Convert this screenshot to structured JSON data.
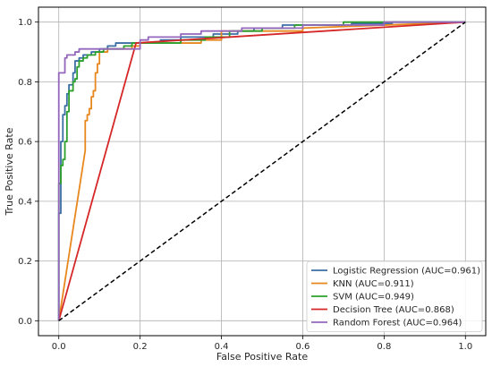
{
  "chart_data": {
    "type": "line",
    "title": "",
    "xlabel": "False Positive Rate",
    "ylabel": "True Positive Rate",
    "xlim": [
      -0.05,
      1.05
    ],
    "ylim": [
      -0.05,
      1.05
    ],
    "xticks": [
      "0.0",
      "0.2",
      "0.4",
      "0.6",
      "0.8",
      "1.0"
    ],
    "yticks": [
      "0.0",
      "0.2",
      "0.4",
      "0.6",
      "0.8",
      "1.0"
    ],
    "grid": true,
    "legend_position": "lower-right",
    "series": [
      {
        "name": "Logistic Regression (AUC=0.961)",
        "color": "#3b6ea5",
        "points": [
          [
            0,
            0
          ],
          [
            0,
            0.36
          ],
          [
            0.005,
            0.36
          ],
          [
            0.005,
            0.6
          ],
          [
            0.01,
            0.6
          ],
          [
            0.01,
            0.69
          ],
          [
            0.015,
            0.69
          ],
          [
            0.015,
            0.72
          ],
          [
            0.02,
            0.72
          ],
          [
            0.02,
            0.76
          ],
          [
            0.025,
            0.76
          ],
          [
            0.025,
            0.79
          ],
          [
            0.035,
            0.79
          ],
          [
            0.035,
            0.83
          ],
          [
            0.04,
            0.83
          ],
          [
            0.04,
            0.87
          ],
          [
            0.05,
            0.87
          ],
          [
            0.05,
            0.88
          ],
          [
            0.06,
            0.88
          ],
          [
            0.06,
            0.89
          ],
          [
            0.08,
            0.89
          ],
          [
            0.08,
            0.9
          ],
          [
            0.1,
            0.9
          ],
          [
            0.1,
            0.91
          ],
          [
            0.12,
            0.91
          ],
          [
            0.12,
            0.92
          ],
          [
            0.14,
            0.92
          ],
          [
            0.14,
            0.93
          ],
          [
            0.25,
            0.93
          ],
          [
            0.25,
            0.94
          ],
          [
            0.3,
            0.94
          ],
          [
            0.3,
            0.95
          ],
          [
            0.38,
            0.95
          ],
          [
            0.38,
            0.96
          ],
          [
            0.44,
            0.96
          ],
          [
            0.44,
            0.97
          ],
          [
            0.48,
            0.97
          ],
          [
            0.48,
            0.98
          ],
          [
            0.55,
            0.98
          ],
          [
            0.55,
            0.99
          ],
          [
            0.72,
            0.99
          ],
          [
            0.72,
            0.995
          ],
          [
            0.82,
            0.995
          ],
          [
            0.82,
            1.0
          ],
          [
            1.0,
            1.0
          ]
        ]
      },
      {
        "name": "KNN (AUC=0.911)",
        "color": "#e8871e",
        "points": [
          [
            0,
            0
          ],
          [
            0.065,
            0.57
          ],
          [
            0.065,
            0.67
          ],
          [
            0.07,
            0.67
          ],
          [
            0.07,
            0.69
          ],
          [
            0.075,
            0.69
          ],
          [
            0.075,
            0.71
          ],
          [
            0.08,
            0.71
          ],
          [
            0.08,
            0.75
          ],
          [
            0.085,
            0.75
          ],
          [
            0.085,
            0.77
          ],
          [
            0.09,
            0.77
          ],
          [
            0.09,
            0.83
          ],
          [
            0.095,
            0.83
          ],
          [
            0.095,
            0.86
          ],
          [
            0.1,
            0.86
          ],
          [
            0.1,
            0.9
          ],
          [
            0.12,
            0.9
          ],
          [
            0.12,
            0.91
          ],
          [
            0.18,
            0.91
          ],
          [
            0.18,
            0.92
          ],
          [
            0.2,
            0.92
          ],
          [
            0.2,
            0.93
          ],
          [
            0.35,
            0.93
          ],
          [
            0.35,
            0.94
          ],
          [
            0.4,
            0.94
          ],
          [
            0.4,
            0.97
          ],
          [
            0.6,
            0.97
          ],
          [
            0.6,
            0.98
          ],
          [
            1.0,
            1.0
          ]
        ]
      },
      {
        "name": "SVM (AUC=0.949)",
        "color": "#2ca02c",
        "points": [
          [
            0,
            0
          ],
          [
            0,
            0.46
          ],
          [
            0.005,
            0.46
          ],
          [
            0.005,
            0.52
          ],
          [
            0.01,
            0.52
          ],
          [
            0.01,
            0.54
          ],
          [
            0.015,
            0.54
          ],
          [
            0.015,
            0.6
          ],
          [
            0.02,
            0.6
          ],
          [
            0.02,
            0.7
          ],
          [
            0.025,
            0.7
          ],
          [
            0.025,
            0.77
          ],
          [
            0.035,
            0.77
          ],
          [
            0.035,
            0.8
          ],
          [
            0.04,
            0.8
          ],
          [
            0.04,
            0.81
          ],
          [
            0.045,
            0.81
          ],
          [
            0.045,
            0.85
          ],
          [
            0.05,
            0.85
          ],
          [
            0.05,
            0.87
          ],
          [
            0.06,
            0.87
          ],
          [
            0.06,
            0.88
          ],
          [
            0.07,
            0.88
          ],
          [
            0.07,
            0.89
          ],
          [
            0.09,
            0.89
          ],
          [
            0.09,
            0.9
          ],
          [
            0.11,
            0.9
          ],
          [
            0.11,
            0.91
          ],
          [
            0.16,
            0.91
          ],
          [
            0.16,
            0.92
          ],
          [
            0.18,
            0.92
          ],
          [
            0.18,
            0.93
          ],
          [
            0.3,
            0.93
          ],
          [
            0.3,
            0.94
          ],
          [
            0.36,
            0.94
          ],
          [
            0.36,
            0.95
          ],
          [
            0.42,
            0.95
          ],
          [
            0.42,
            0.97
          ],
          [
            0.5,
            0.97
          ],
          [
            0.5,
            0.98
          ],
          [
            0.58,
            0.98
          ],
          [
            0.58,
            0.99
          ],
          [
            0.7,
            0.99
          ],
          [
            0.7,
            1.0
          ],
          [
            1.0,
            1.0
          ]
        ]
      },
      {
        "name": "Decision Tree (AUC=0.868)",
        "color": "#d62728",
        "points": [
          [
            0,
            0
          ],
          [
            0.19,
            0.93
          ],
          [
            1.0,
            1.0
          ]
        ]
      },
      {
        "name": "Random Forest (AUC=0.964)",
        "color": "#9467bd",
        "points": [
          [
            0,
            0
          ],
          [
            0,
            0.83
          ],
          [
            0.015,
            0.83
          ],
          [
            0.015,
            0.88
          ],
          [
            0.02,
            0.88
          ],
          [
            0.02,
            0.89
          ],
          [
            0.04,
            0.89
          ],
          [
            0.04,
            0.9
          ],
          [
            0.05,
            0.9
          ],
          [
            0.05,
            0.91
          ],
          [
            0.2,
            0.91
          ],
          [
            0.2,
            0.94
          ],
          [
            0.22,
            0.94
          ],
          [
            0.22,
            0.95
          ],
          [
            0.3,
            0.95
          ],
          [
            0.3,
            0.96
          ],
          [
            0.35,
            0.96
          ],
          [
            0.35,
            0.97
          ],
          [
            0.45,
            0.97
          ],
          [
            0.45,
            0.98
          ],
          [
            0.6,
            0.98
          ],
          [
            0.6,
            0.99
          ],
          [
            0.8,
            0.99
          ],
          [
            0.8,
            1.0
          ],
          [
            1.0,
            1.0
          ]
        ]
      }
    ],
    "reference_line": {
      "color": "#000000",
      "points": [
        [
          0,
          0
        ],
        [
          1,
          1
        ]
      ]
    }
  }
}
